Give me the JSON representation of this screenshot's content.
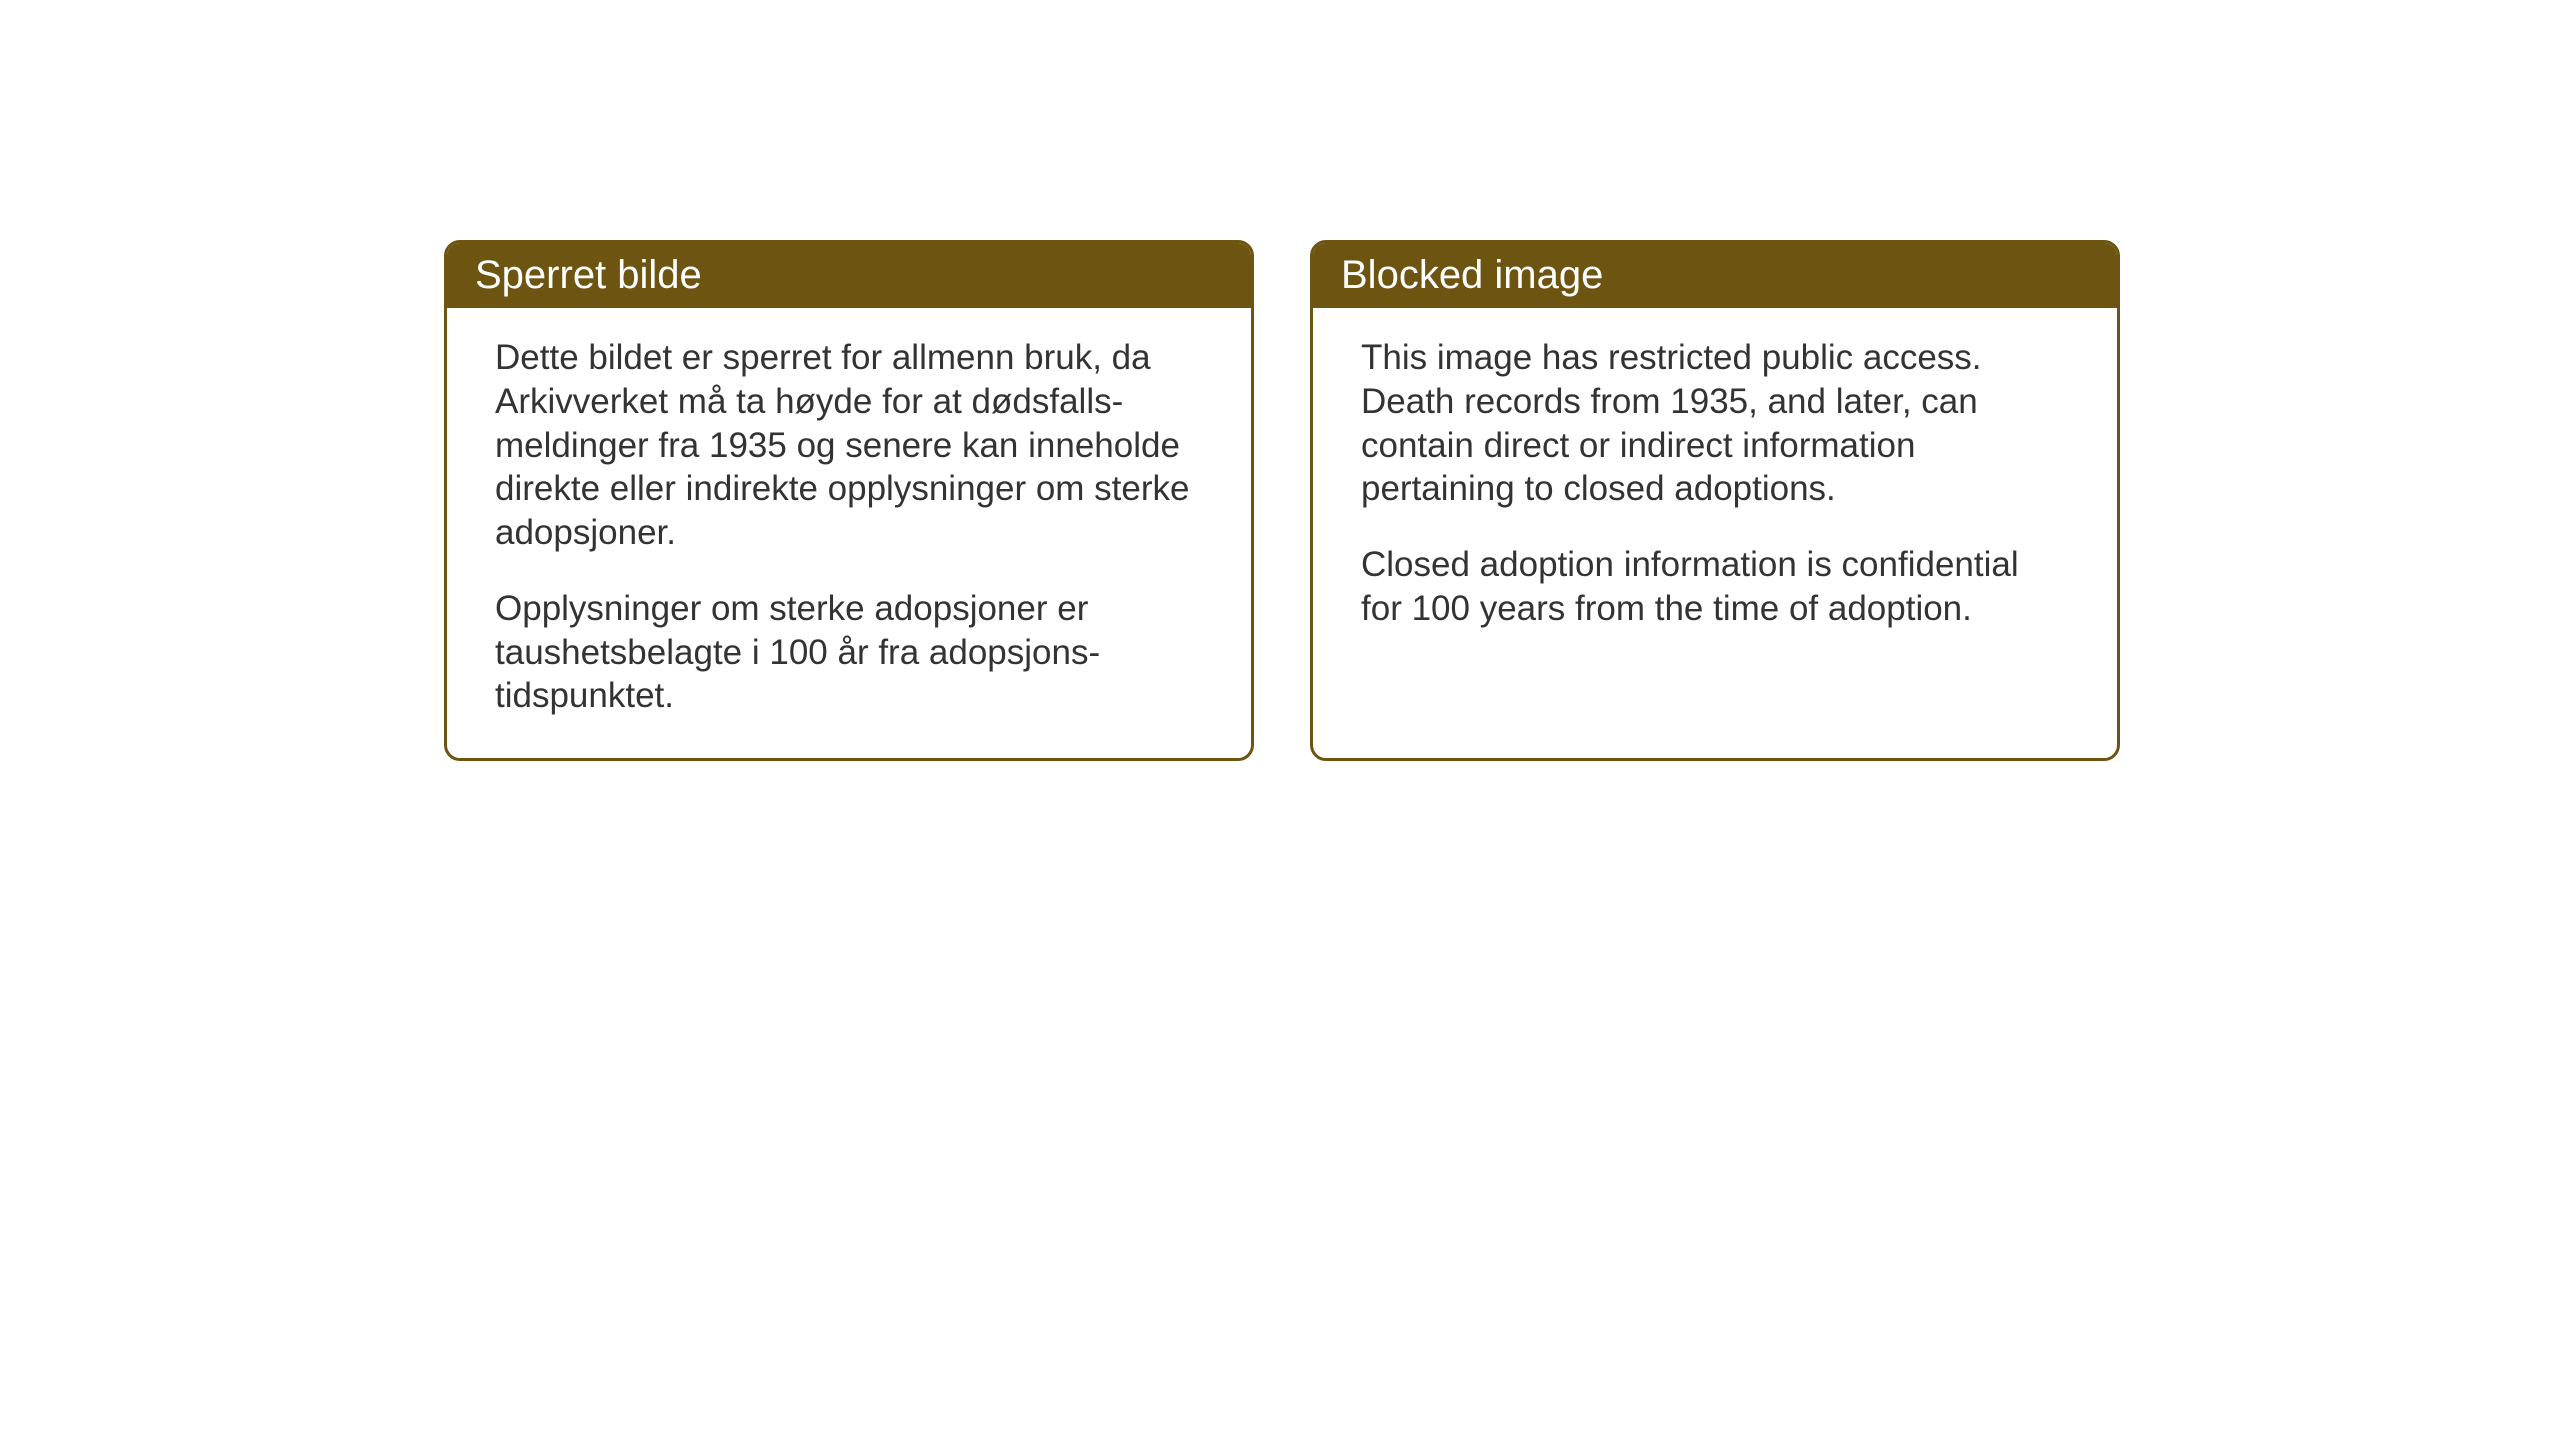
{
  "cards": {
    "norwegian": {
      "title": "Sperret bilde",
      "paragraph1": "Dette bildet er sperret for allmenn bruk, da Arkivverket må ta høyde for at dødsfalls-meldinger fra 1935 og senere kan inneholde direkte eller indirekte opplysninger om sterke adopsjoner.",
      "paragraph2": "Opplysninger om sterke adopsjoner er taushetsbelagte i 100 år fra adopsjons-tidspunktet."
    },
    "english": {
      "title": "Blocked image",
      "paragraph1": "This image has restricted public access. Death records from 1935, and later, can contain direct or indirect information pertaining to closed adoptions.",
      "paragraph2": "Closed adoption information is confidential for 100 years from the time of adoption."
    }
  },
  "styling": {
    "header_bg_color": "#6e5411",
    "header_text_color": "#ffffff",
    "border_color": "#6e5411",
    "body_text_color": "#333333",
    "card_bg_color": "#ffffff",
    "page_bg_color": "#ffffff",
    "title_fontsize": 40,
    "body_fontsize": 35,
    "border_radius": 16,
    "border_width": 3
  }
}
